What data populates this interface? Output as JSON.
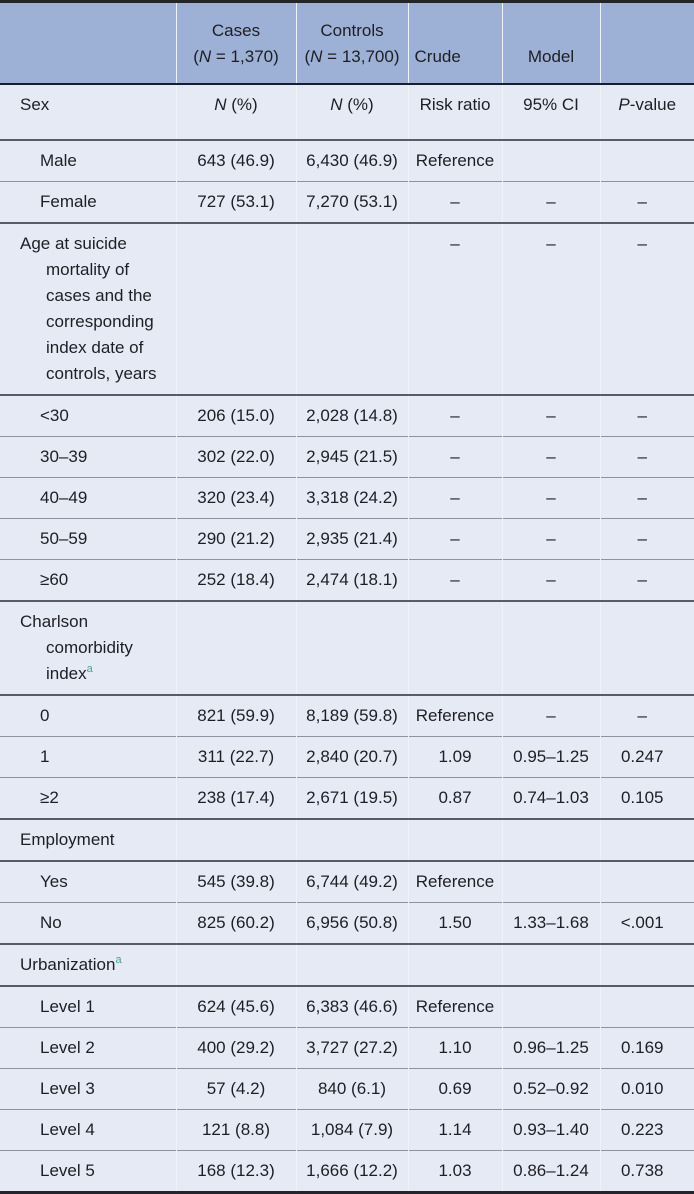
{
  "colors": {
    "header_bg": "#9db0d6",
    "body_bg": "#e6eaf5",
    "footnote_marker": "#4d9d9b",
    "frame_border": "#23252b"
  },
  "table": {
    "header_band": {
      "cases": {
        "title": "Cases",
        "sub_parts": [
          "(",
          "N",
          " = 1,370)"
        ]
      },
      "controls": {
        "title": "Controls",
        "sub_parts": [
          "(",
          "N",
          " = 13,700)"
        ]
      },
      "crude_label": "Crude",
      "model_label": "Model"
    },
    "subheader": {
      "label": "Sex",
      "cases_parts": [
        "N",
        " (%)"
      ],
      "controls_parts": [
        "N",
        " (%)"
      ],
      "risk_ratio": "Risk ratio",
      "ci": "95% CI",
      "p_parts": [
        "P",
        "-value"
      ]
    },
    "rows": [
      {
        "label": "Male",
        "type": "item",
        "cases": "643 (46.9)",
        "controls": "6,430 (46.9)",
        "crude": "Reference",
        "ci": "",
        "p": ""
      },
      {
        "label": "Female",
        "type": "item",
        "cases": "727 (53.1)",
        "controls": "7,270 (53.1)",
        "crude": "–",
        "ci": "–",
        "p": "–"
      },
      {
        "label": "Age at suicide\nmortality of\ncases and the\ncorresponding\nindex date of\ncontrols, years",
        "type": "section",
        "cases": "",
        "controls": "",
        "crude": "–",
        "ci": "–",
        "p": "–"
      },
      {
        "label": "<30",
        "type": "item",
        "cases": "206 (15.0)",
        "controls": "2,028 (14.8)",
        "crude": "–",
        "ci": "–",
        "p": "–"
      },
      {
        "label": "30–39",
        "type": "item",
        "cases": "302 (22.0)",
        "controls": "2,945 (21.5)",
        "crude": "–",
        "ci": "–",
        "p": "–"
      },
      {
        "label": "40–49",
        "type": "item",
        "cases": "320 (23.4)",
        "controls": "3,318 (24.2)",
        "crude": "–",
        "ci": "–",
        "p": "–"
      },
      {
        "label": "50–59",
        "type": "item",
        "cases": "290 (21.2)",
        "controls": "2,935 (21.4)",
        "crude": "–",
        "ci": "–",
        "p": "–"
      },
      {
        "label": "≥60",
        "type": "item",
        "cases": "252 (18.4)",
        "controls": "2,474 (18.1)",
        "crude": "–",
        "ci": "–",
        "p": "–"
      },
      {
        "label": "Charlson\ncomorbidity\nindex",
        "sup": "a",
        "type": "section",
        "cases": "",
        "controls": "",
        "crude": "",
        "ci": "",
        "p": ""
      },
      {
        "label": "0",
        "type": "item",
        "cases": "821 (59.9)",
        "controls": "8,189 (59.8)",
        "crude": "Reference",
        "ci": "–",
        "p": "–"
      },
      {
        "label": "1",
        "type": "item",
        "cases": "311 (22.7)",
        "controls": "2,840 (20.7)",
        "crude": "1.09",
        "ci": "0.95–1.25",
        "p": "0.247"
      },
      {
        "label": "≥2",
        "type": "item",
        "cases": "238 (17.4)",
        "controls": "2,671 (19.5)",
        "crude": "0.87",
        "ci": "0.74–1.03",
        "p": "0.105"
      },
      {
        "label": "Employment",
        "type": "section",
        "cases": "",
        "controls": "",
        "crude": "",
        "ci": "",
        "p": ""
      },
      {
        "label": "Yes",
        "type": "item",
        "cases": "545 (39.8)",
        "controls": "6,744 (49.2)",
        "crude": "Reference",
        "ci": "",
        "p": ""
      },
      {
        "label": "No",
        "type": "item",
        "cases": "825 (60.2)",
        "controls": "6,956 (50.8)",
        "crude": "1.50",
        "ci": "1.33–1.68",
        "p": "<.001"
      },
      {
        "label": "Urbanization",
        "sup": "a",
        "type": "section",
        "cases": "",
        "controls": "",
        "crude": "",
        "ci": "",
        "p": ""
      },
      {
        "label": "Level 1",
        "type": "item",
        "cases": "624 (45.6)",
        "controls": "6,383 (46.6)",
        "crude": "Reference",
        "ci": "",
        "p": ""
      },
      {
        "label": "Level 2",
        "type": "item",
        "cases": "400 (29.2)",
        "controls": "3,727 (27.2)",
        "crude": "1.10",
        "ci": "0.96–1.25",
        "p": "0.169"
      },
      {
        "label": "Level 3",
        "type": "item",
        "cases": "57 (4.2)",
        "controls": "840 (6.1)",
        "crude": "0.69",
        "ci": "0.52–0.92",
        "p": "0.010"
      },
      {
        "label": "Level 4",
        "type": "item",
        "cases": "121 (8.8)",
        "controls": "1,084 (7.9)",
        "crude": "1.14",
        "ci": "0.93–1.40",
        "p": "0.223"
      },
      {
        "label": "Level 5",
        "type": "item",
        "cases": "168 (12.3)",
        "controls": "1,666 (12.2)",
        "crude": "1.03",
        "ci": "0.86–1.24",
        "p": "0.738"
      }
    ]
  }
}
